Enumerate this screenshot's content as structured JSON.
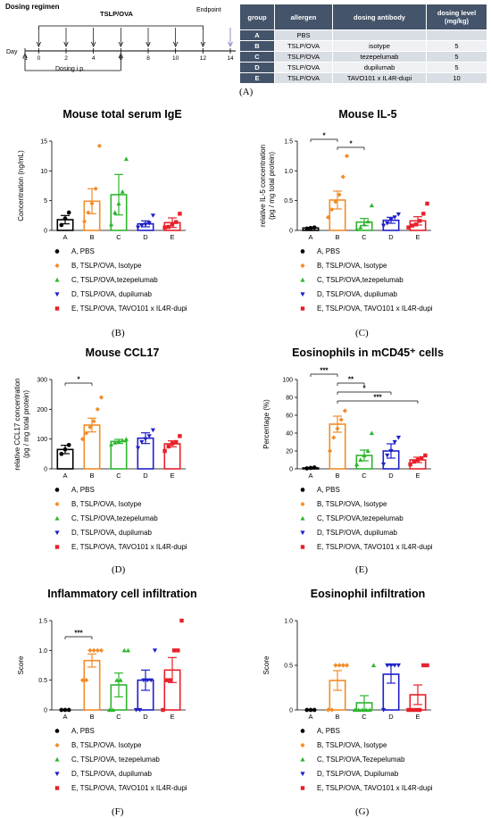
{
  "regimen": {
    "title": "Dosing regimen",
    "period_label": "TSLP/OVA",
    "endpoint_label": "Endpoint",
    "day_label": "Day",
    "days": [
      "-1",
      "0",
      "2",
      "4",
      "6",
      "8",
      "10",
      "12",
      "14"
    ],
    "dosing_label": "Dosing i.p."
  },
  "table": {
    "headers": [
      "group",
      "allergen",
      "dosing antibody",
      "dosing level (mg/kg)"
    ],
    "rows": [
      [
        "A",
        "PBS",
        "",
        ""
      ],
      [
        "B",
        "TSLP/OVA",
        "isotype",
        "5"
      ],
      [
        "C",
        "TSLP/OVA",
        "tezepelumab",
        "5"
      ],
      [
        "D",
        "TSLP/OVA",
        "dupilumab",
        "5"
      ],
      [
        "E",
        "TSLP/OVA",
        "TAVO101 x IL4R-dupi",
        "10"
      ]
    ]
  },
  "colors": {
    "A": "#000000",
    "B": "#f28c28",
    "C": "#2db52d",
    "D": "#1f1fc8",
    "E": "#e8202a"
  },
  "captions": [
    "(A)",
    "(B)",
    "(C)",
    "(D)",
    "(E)",
    "(F)",
    "(G)"
  ],
  "chart_data": [
    {
      "id": "B",
      "type": "bar",
      "title": "Mouse total serum IgE",
      "ylabel": "Concentration (ng/mL)",
      "ylim": [
        0,
        15
      ],
      "yticks": [
        0,
        5,
        10,
        15
      ],
      "categories": [
        "A",
        "B",
        "C",
        "D",
        "E"
      ],
      "values": [
        1.8,
        4.9,
        6.0,
        1.1,
        1.3
      ],
      "errors": [
        0.7,
        2.1,
        3.4,
        0.5,
        0.8
      ],
      "points": [
        [
          0.9,
          2.0,
          3.0
        ],
        [
          1.5,
          3.0,
          4.5,
          7.0,
          14.2
        ],
        [
          1.0,
          3.0,
          4.5,
          6.5,
          12.0
        ],
        [
          0.5,
          0.8,
          1.0,
          1.2,
          2.5
        ],
        [
          0.5,
          0.6,
          1.0,
          1.4,
          2.8
        ]
      ],
      "legend": [
        "A, PBS",
        "B, TSLP/OVA, Isotype",
        "C, TSLP/OVA,tezepelumab",
        "D, TSLP/OVA, dupilumab",
        "E, TSLP/OVA, TAVO101 x IL4R-dupi"
      ],
      "sig": []
    },
    {
      "id": "C",
      "type": "bar",
      "title": "Mouse IL-5",
      "ylabel": "relative IL-5 concentration\n(pg / mg total protein)",
      "ylim": [
        0,
        1.5
      ],
      "yticks": [
        0,
        0.5,
        1.0,
        1.5
      ],
      "categories": [
        "A",
        "B",
        "C",
        "D",
        "E"
      ],
      "values": [
        0.04,
        0.51,
        0.14,
        0.17,
        0.16
      ],
      "errors": [
        0.01,
        0.15,
        0.06,
        0.05,
        0.07
      ],
      "points": [
        [
          0.03,
          0.04,
          0.05
        ],
        [
          0.22,
          0.35,
          0.48,
          0.6,
          0.9,
          1.25
        ],
        [
          0.02,
          0.05,
          0.1,
          0.15,
          0.42
        ],
        [
          0.08,
          0.12,
          0.18,
          0.22,
          0.27
        ],
        [
          0.05,
          0.08,
          0.1,
          0.16,
          0.28,
          0.45
        ]
      ],
      "legend": [
        "A, PBS",
        "B, TSLP/OVA, Isotype",
        "C, TSLP/OVA,tezepelumab",
        "D, TSLP/OVA, dupilumab",
        "E, TSLP/OVA, TAVO101 x IL4R-dupi"
      ],
      "sig": [
        {
          "from": 0,
          "to": 1,
          "label": "*"
        },
        {
          "from": 1,
          "to": 2,
          "label": "*"
        }
      ]
    },
    {
      "id": "D",
      "type": "bar",
      "title": "Mouse CCL17",
      "ylabel": "relative CCL17 concentration\n(pg / mg total protein)",
      "ylim": [
        0,
        300
      ],
      "yticks": [
        0,
        100,
        200,
        300
      ],
      "categories": [
        "A",
        "B",
        "C",
        "D",
        "E"
      ],
      "values": [
        65,
        147,
        92,
        103,
        84
      ],
      "errors": [
        14,
        23,
        7,
        18,
        10
      ],
      "points": [
        [
          50,
          65,
          80
        ],
        [
          100,
          120,
          140,
          160,
          200,
          240
        ],
        [
          82,
          88,
          92,
          95,
          100
        ],
        [
          70,
          90,
          100,
          110,
          130
        ],
        [
          60,
          75,
          85,
          90,
          110
        ]
      ],
      "legend": [
        "A, PBS",
        "B, TSLP/OVA, Isotype",
        "C, TSLP/OVA,tezepelumab",
        "D, TSLP/OVA, dupilumab",
        "E, TSLP/OVA, TAVO101 x IL4R-dupi"
      ],
      "sig": [
        {
          "from": 0,
          "to": 1,
          "label": "*"
        }
      ]
    },
    {
      "id": "E",
      "type": "bar",
      "title": "Eosinophils in mCD45⁺ cells",
      "ylabel": "Percentage (%)",
      "ylim": [
        0,
        100
      ],
      "yticks": [
        0,
        20,
        40,
        60,
        80,
        100
      ],
      "categories": [
        "A",
        "B",
        "C",
        "D",
        "E"
      ],
      "values": [
        1,
        50,
        15,
        20,
        10
      ],
      "errors": [
        0.5,
        9,
        6,
        8,
        3
      ],
      "points": [
        [
          0.5,
          1,
          1.5
        ],
        [
          20,
          35,
          45,
          55,
          65
        ],
        [
          5,
          10,
          15,
          20,
          40
        ],
        [
          5,
          15,
          20,
          30,
          35
        ],
        [
          5,
          8,
          10,
          12,
          15
        ]
      ],
      "legend": [
        "A, PBS",
        "B, TSLP/OVA, Isotype",
        "C, TSLP/OVA,tezepelumab",
        "D, TSLP/OVA, dupilumab",
        "E, TSLP/OVA, TAVO101 x IL4R-dupi"
      ],
      "sig": [
        {
          "from": 0,
          "to": 1,
          "label": "***"
        },
        {
          "from": 1,
          "to": 2,
          "label": "**"
        },
        {
          "from": 1,
          "to": 3,
          "label": "*"
        },
        {
          "from": 1,
          "to": 4,
          "label": "***"
        }
      ]
    },
    {
      "id": "F",
      "type": "bar",
      "title": "Inflammatory cell infiltration",
      "ylabel": "Score",
      "ylim": [
        0,
        1.5
      ],
      "yticks": [
        0,
        0.5,
        1.0,
        1.5
      ],
      "categories": [
        "A",
        "B",
        "C",
        "D",
        "E"
      ],
      "values": [
        0,
        0.83,
        0.42,
        0.5,
        0.67
      ],
      "errors": [
        0,
        0.11,
        0.2,
        0.17,
        0.21
      ],
      "points": [
        [
          0,
          0,
          0
        ],
        [
          0.5,
          0.5,
          1,
          1,
          1,
          1
        ],
        [
          0,
          0,
          0.5,
          0.5,
          1,
          1
        ],
        [
          0,
          0,
          0.5,
          0.5,
          0.5,
          1
        ],
        [
          0,
          0.5,
          0.5,
          1,
          1,
          1.5
        ]
      ],
      "legend": [
        "A, PBS",
        "B, TSLP/OVA. Isotype",
        "C, TSLP/OVA, tezepelumab",
        "D, TSLP/OVA, dupilumab",
        "E, TSLP/OVA, TAVO101 x IL4R-dupi"
      ],
      "sig": [
        {
          "from": 0,
          "to": 1,
          "label": "***"
        }
      ]
    },
    {
      "id": "G",
      "type": "bar",
      "title": "Eosinophil infiltration",
      "ylabel": "Score",
      "ylim": [
        0,
        1.0
      ],
      "yticks": [
        0,
        0.5,
        1.0
      ],
      "categories": [
        "A",
        "B",
        "C",
        "D",
        "E"
      ],
      "values": [
        0,
        0.33,
        0.08,
        0.4,
        0.17
      ],
      "errors": [
        0,
        0.11,
        0.08,
        0.1,
        0.11
      ],
      "points": [
        [
          0,
          0,
          0
        ],
        [
          0,
          0,
          0.5,
          0.5,
          0.5,
          0.5
        ],
        [
          0,
          0,
          0,
          0,
          0,
          0.5
        ],
        [
          0,
          0.5,
          0.5,
          0.5,
          0.5
        ],
        [
          0,
          0,
          0,
          0,
          0.5,
          0.5
        ]
      ],
      "legend": [
        "A, PBS",
        "B, TSLP/OVA, Isotype",
        "C, TSLP/OVA,Tezepelumab",
        "D, TSLP/OVA, Dupilumab",
        "E, TSLP/OVA, TAVO101 x IL4R-dupi"
      ],
      "sig": []
    }
  ]
}
